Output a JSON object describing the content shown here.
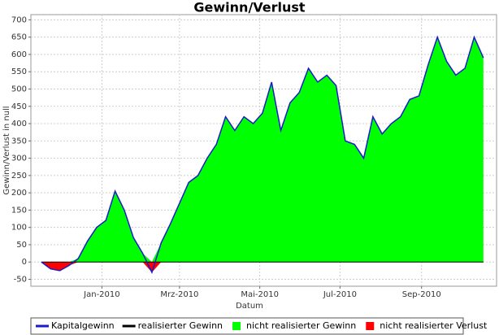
{
  "chart_data": {
    "type": "area",
    "title": "Gewinn/Verlust",
    "x_label": "Datum",
    "y_label": "Gewinn/Verlust in null",
    "x": [
      "2009-11-16",
      "2009-11-23",
      "2009-11-30",
      "2009-12-07",
      "2009-12-14",
      "2009-12-21",
      "2009-12-28",
      "2010-01-04",
      "2010-01-11",
      "2010-01-18",
      "2010-01-25",
      "2010-02-01",
      "2010-02-08",
      "2010-02-15",
      "2010-02-22",
      "2010-03-01",
      "2010-03-08",
      "2010-03-15",
      "2010-03-22",
      "2010-03-29",
      "2010-04-05",
      "2010-04-12",
      "2010-04-19",
      "2010-04-26",
      "2010-05-03",
      "2010-05-10",
      "2010-05-17",
      "2010-05-24",
      "2010-05-31",
      "2010-06-07",
      "2010-06-14",
      "2010-06-21",
      "2010-06-28",
      "2010-07-05",
      "2010-07-12",
      "2010-07-19",
      "2010-07-26",
      "2010-08-02",
      "2010-08-09",
      "2010-08-16",
      "2010-08-23",
      "2010-08-30",
      "2010-09-06",
      "2010-09-13",
      "2010-09-20",
      "2010-09-27",
      "2010-10-04",
      "2010-10-11",
      "2010-10-18"
    ],
    "series": [
      {
        "name": "Kapitalgewinn",
        "color": "#1a1ad0",
        "kind": "line",
        "values": [
          0,
          -20,
          -25,
          -10,
          10,
          60,
          100,
          120,
          205,
          150,
          70,
          25,
          -30,
          55,
          110,
          170,
          230,
          250,
          300,
          340,
          420,
          380,
          420,
          400,
          430,
          520,
          380,
          460,
          490,
          560,
          520,
          540,
          510,
          350,
          340,
          300,
          420,
          370,
          400,
          420,
          470,
          480,
          570,
          650,
          580,
          540,
          560,
          650,
          590
        ]
      },
      {
        "name": "realisierter Gewinn",
        "color": "#000000",
        "kind": "line",
        "values": [
          0,
          0,
          0,
          0,
          0,
          0,
          0,
          0,
          0,
          0,
          0,
          0,
          0,
          0,
          0,
          0,
          0,
          0,
          0,
          0,
          0,
          0,
          0,
          0,
          0,
          0,
          0,
          0,
          0,
          0,
          0,
          0,
          0,
          0,
          0,
          0,
          0,
          0,
          0,
          0,
          0,
          0,
          0,
          0,
          0,
          0,
          0,
          0,
          0
        ]
      },
      {
        "name": "nicht realisierter Gewinn",
        "color": "#00ff00",
        "kind": "area",
        "values": [
          0,
          0,
          0,
          0,
          10,
          60,
          100,
          120,
          205,
          150,
          70,
          25,
          0,
          55,
          110,
          170,
          230,
          250,
          300,
          340,
          420,
          380,
          420,
          400,
          430,
          520,
          380,
          460,
          490,
          560,
          520,
          540,
          510,
          350,
          340,
          300,
          420,
          370,
          400,
          420,
          470,
          480,
          570,
          650,
          580,
          540,
          560,
          650,
          590
        ]
      },
      {
        "name": "nicht realisierter Verlust",
        "color": "#ff0000",
        "kind": "area",
        "values": [
          0,
          -20,
          -25,
          -10,
          0,
          0,
          0,
          0,
          0,
          0,
          0,
          0,
          -30,
          0,
          0,
          0,
          0,
          0,
          0,
          0,
          0,
          0,
          0,
          0,
          0,
          0,
          0,
          0,
          0,
          0,
          0,
          0,
          0,
          0,
          0,
          0,
          0,
          0,
          0,
          0,
          0,
          0,
          0,
          0,
          0,
          0,
          0,
          0,
          0
        ]
      }
    ],
    "xlim": [
      "2009-11-08",
      "2010-10-28"
    ],
    "xticks": [
      {
        "value": "2010-01-01",
        "label": "Jan-2010"
      },
      {
        "value": "2010-03-01",
        "label": "Mrz-2010"
      },
      {
        "value": "2010-05-01",
        "label": "Mai-2010"
      },
      {
        "value": "2010-07-01",
        "label": "Jul-2010"
      },
      {
        "value": "2010-09-01",
        "label": "Sep-2010"
      }
    ],
    "ylim": [
      -70,
      715
    ],
    "yticks": [
      -50,
      0,
      50,
      100,
      150,
      200,
      250,
      300,
      350,
      400,
      450,
      500,
      550,
      600,
      650,
      700
    ],
    "grid": true,
    "legend": "bottom"
  }
}
